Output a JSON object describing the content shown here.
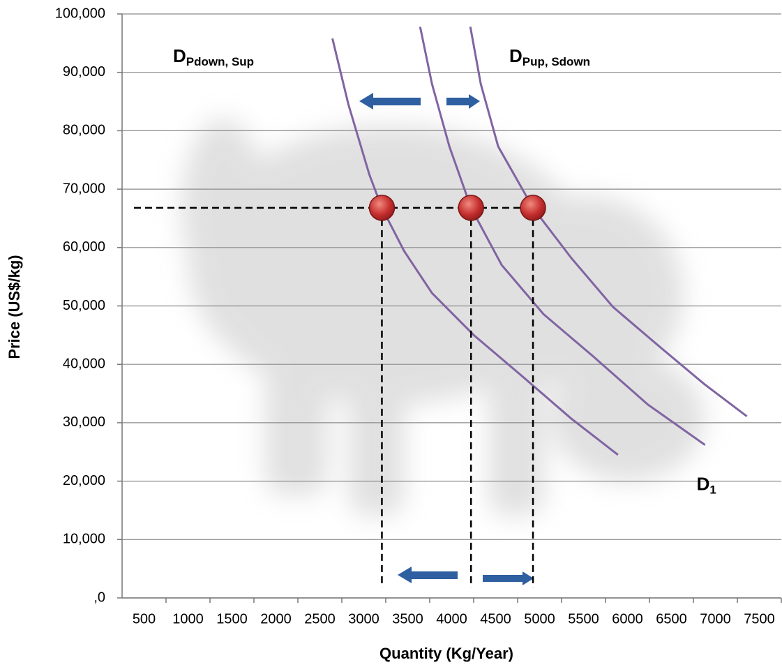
{
  "chart_data": {
    "type": "line",
    "y_label": "Price (US$/kg)",
    "x_label": "Quantity (Kg/Year)",
    "xlim": [
      250,
      7750
    ],
    "xticks": [
      500,
      1000,
      1500,
      2000,
      2500,
      3000,
      3500,
      4000,
      4500,
      5000,
      5500,
      6000,
      6500,
      7000,
      7500
    ],
    "ylim": [
      0,
      100000
    ],
    "yticks": [
      {
        "value": 0,
        "label": ",0"
      },
      {
        "value": 10000,
        "label": "10,000"
      },
      {
        "value": 20000,
        "label": "20,000"
      },
      {
        "value": 30000,
        "label": "30,000"
      },
      {
        "value": 40000,
        "label": "40,000"
      },
      {
        "value": 50000,
        "label": "50,000"
      },
      {
        "value": 60000,
        "label": "60,000"
      },
      {
        "value": 70000,
        "label": "70,000"
      },
      {
        "value": 80000,
        "label": "80,000"
      },
      {
        "value": 90000,
        "label": "90,000"
      },
      {
        "value": 100000,
        "label": "100,000"
      }
    ],
    "grid": true,
    "series": [
      {
        "label": {
          "main": "D",
          "sub": "Pdown, Sup"
        },
        "color": "#8064a2",
        "x": [
          2643,
          2825,
          3063,
          3206,
          3459,
          3776,
          4252,
          4807,
          5361,
          5892
        ],
        "values": [
          95800,
          84500,
          72500,
          66800,
          59400,
          52200,
          45000,
          37900,
          30700,
          24500
        ]
      },
      {
        "label": {
          "main": "D",
          "sub": "1"
        },
        "color": "#8064a2",
        "x": [
          3641,
          3776,
          3974,
          4220,
          4569,
          5044,
          5599,
          6233,
          6882
        ],
        "values": [
          97800,
          88000,
          77300,
          66800,
          57000,
          48600,
          41500,
          33100,
          26200
        ]
      },
      {
        "label": {
          "main": "D",
          "sub": "Pup, Sdown"
        },
        "color": "#8064a2",
        "x": [
          4212,
          4331,
          4529,
          4925,
          5361,
          5837,
          6391,
          6867,
          7358
        ],
        "values": [
          97800,
          88000,
          77300,
          66800,
          58200,
          49800,
          42700,
          36700,
          31100
        ]
      }
    ],
    "points": {
      "color": "#c62f2f",
      "x": [
        3206,
        4220,
        4925
      ],
      "values": [
        66800,
        66800,
        66800
      ]
    }
  }
}
